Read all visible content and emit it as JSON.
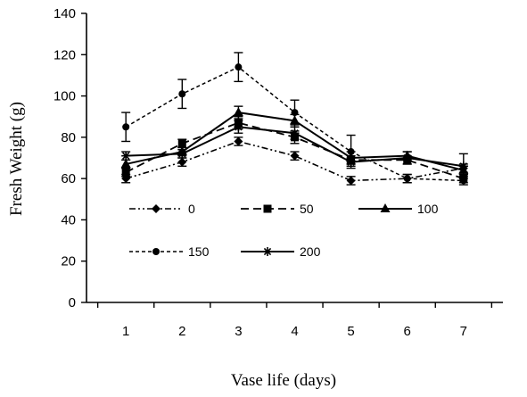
{
  "chart_data": {
    "type": "line",
    "title": "",
    "xlabel": "Vase life (days)",
    "ylabel": "Fresh Weight (g)",
    "x": [
      1,
      2,
      3,
      4,
      5,
      6,
      7
    ],
    "xlim": [
      0.3,
      7.7
    ],
    "ylim": [
      0,
      140
    ],
    "yticks": [
      0,
      20,
      40,
      60,
      80,
      100,
      120,
      140
    ],
    "grid": false,
    "legend_position": "inside-lower-left",
    "series": [
      {
        "name": "0",
        "marker": "diamond",
        "dash": "dash-dot-dot",
        "values": [
          60,
          68,
          78,
          71,
          59,
          60,
          65
        ],
        "errors": [
          2,
          2,
          2,
          2,
          2,
          2,
          2
        ]
      },
      {
        "name": "50",
        "marker": "square",
        "dash": "dashed",
        "values": [
          63,
          77,
          87,
          80,
          69,
          69,
          60
        ],
        "errors": [
          2,
          2,
          3,
          3,
          2,
          2,
          2
        ]
      },
      {
        "name": "100",
        "marker": "triangle",
        "dash": "solid",
        "values": [
          67,
          73,
          92,
          88,
          70,
          71,
          64
        ],
        "errors": [
          2,
          2,
          3,
          3,
          3,
          2,
          2
        ]
      },
      {
        "name": "150",
        "marker": "circle",
        "dash": "short-dash",
        "values": [
          85,
          101,
          114,
          92,
          73,
          60,
          59
        ],
        "errors": [
          7,
          7,
          7,
          6,
          8,
          2,
          2
        ]
      },
      {
        "name": "200",
        "marker": "star",
        "dash": "solid",
        "values": [
          71,
          72,
          85,
          82,
          68,
          70,
          66
        ],
        "errors": [
          2,
          2,
          3,
          3,
          2,
          3,
          6
        ]
      }
    ]
  }
}
